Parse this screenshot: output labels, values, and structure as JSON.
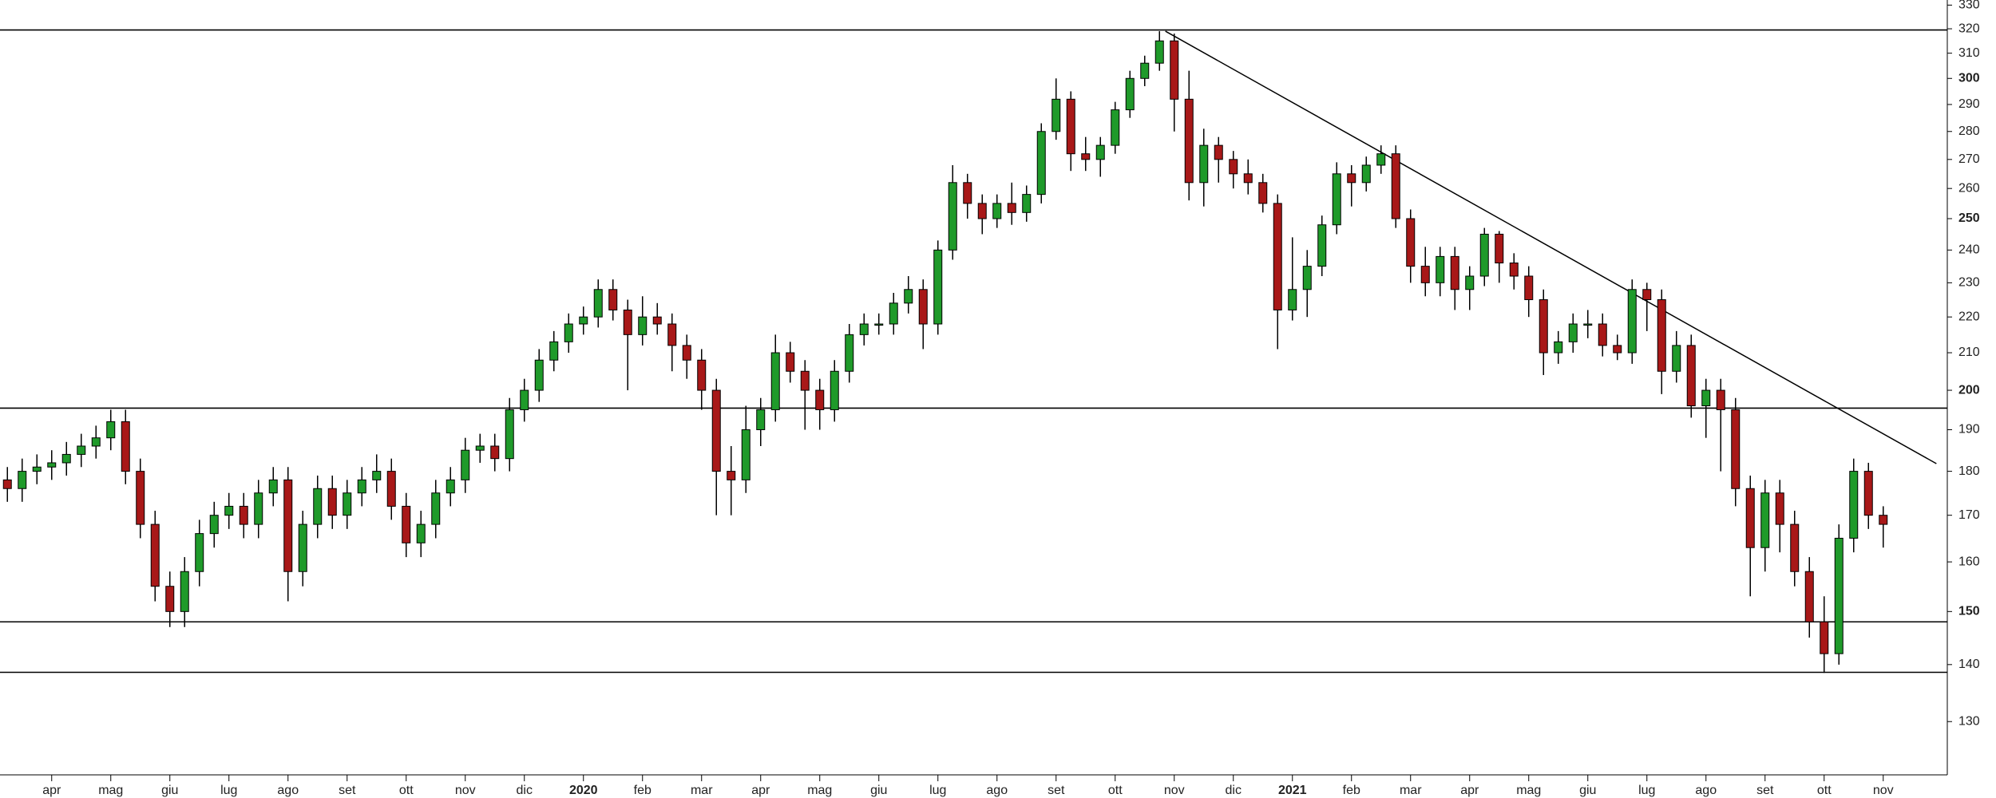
{
  "chart_data": {
    "type": "candlestick",
    "log_scale": true,
    "grid": false,
    "up_color": "#1f9a2a",
    "down_color": "#a81818",
    "categories": [
      null,
      null,
      null,
      "apr",
      null,
      null,
      null,
      "mag",
      null,
      null,
      null,
      "giu",
      null,
      null,
      null,
      "lug",
      null,
      null,
      null,
      "ago",
      null,
      null,
      null,
      "set",
      null,
      null,
      null,
      "ott",
      null,
      null,
      null,
      "nov",
      null,
      null,
      null,
      "dic",
      null,
      null,
      null,
      "2020",
      null,
      null,
      null,
      "feb",
      null,
      null,
      null,
      "mar",
      null,
      null,
      null,
      "apr",
      null,
      null,
      null,
      "mag",
      null,
      null,
      null,
      "giu",
      null,
      null,
      null,
      "lug",
      null,
      null,
      null,
      "ago",
      null,
      null,
      null,
      "set",
      null,
      null,
      null,
      "ott",
      null,
      null,
      null,
      "nov",
      null,
      null,
      null,
      "dic",
      null,
      null,
      null,
      "2021",
      null,
      null,
      null,
      "feb",
      null,
      null,
      null,
      "mar",
      null,
      null,
      null,
      "apr",
      null,
      null,
      null,
      "mag",
      null,
      null,
      null,
      "giu",
      null,
      null,
      null,
      "lug",
      null,
      null,
      null,
      "ago",
      null,
      null,
      null,
      "set",
      null,
      null,
      null,
      "ott",
      null,
      null,
      null,
      "nov"
    ],
    "open": [
      178,
      176,
      180,
      181,
      182,
      184,
      186,
      188,
      192,
      180,
      168,
      155,
      150,
      158,
      166,
      170,
      172,
      168,
      175,
      178,
      158,
      168,
      176,
      170,
      175,
      178,
      180,
      172,
      164,
      168,
      175,
      178,
      185,
      186,
      183,
      195,
      200,
      208,
      213,
      218,
      220,
      228,
      222,
      215,
      220,
      218,
      212,
      208,
      200,
      180,
      178,
      190,
      195,
      210,
      205,
      200,
      195,
      205,
      215,
      218,
      218,
      224,
      228,
      218,
      240,
      262,
      255,
      250,
      255,
      252,
      258,
      280,
      292,
      272,
      270,
      275,
      288,
      300,
      306,
      315,
      292,
      262,
      275,
      270,
      265,
      262,
      255,
      222,
      228,
      235,
      248,
      265,
      262,
      268,
      272,
      250,
      235,
      230,
      238,
      228,
      232,
      245,
      236,
      232,
      225,
      210,
      213,
      218,
      218,
      212,
      210,
      228,
      225,
      205,
      212,
      196,
      200,
      195,
      176,
      163,
      175,
      168,
      158,
      148,
      142,
      165,
      180,
      170
    ],
    "high": [
      181,
      183,
      184,
      185,
      187,
      189,
      191,
      195,
      195,
      183,
      171,
      158,
      161,
      169,
      173,
      175,
      175,
      178,
      181,
      181,
      171,
      179,
      179,
      178,
      181,
      184,
      183,
      175,
      171,
      178,
      181,
      188,
      189,
      189,
      198,
      203,
      211,
      216,
      221,
      223,
      231,
      231,
      225,
      226,
      224,
      221,
      215,
      211,
      203,
      186,
      196,
      198,
      215,
      213,
      208,
      203,
      208,
      218,
      221,
      221,
      227,
      232,
      231,
      243,
      268,
      265,
      258,
      258,
      262,
      261,
      283,
      300,
      295,
      278,
      278,
      291,
      303,
      309,
      319,
      318,
      303,
      281,
      278,
      273,
      270,
      265,
      258,
      244,
      240,
      251,
      269,
      268,
      271,
      275,
      275,
      253,
      241,
      241,
      241,
      235,
      247,
      246,
      239,
      235,
      228,
      216,
      221,
      222,
      221,
      215,
      231,
      230,
      228,
      216,
      215,
      203,
      203,
      198,
      179,
      178,
      178,
      171,
      161,
      153,
      168,
      183,
      182,
      172
    ],
    "low": [
      173,
      173,
      177,
      178,
      179,
      181,
      183,
      185,
      177,
      165,
      152,
      147,
      147,
      155,
      163,
      167,
      165,
      165,
      172,
      152,
      155,
      165,
      167,
      167,
      172,
      175,
      169,
      161,
      161,
      165,
      172,
      175,
      182,
      180,
      180,
      192,
      197,
      205,
      210,
      215,
      217,
      219,
      200,
      212,
      215,
      205,
      203,
      195,
      170,
      170,
      175,
      186,
      192,
      202,
      190,
      190,
      192,
      202,
      212,
      215,
      215,
      221,
      211,
      215,
      237,
      250,
      245,
      247,
      248,
      249,
      255,
      277,
      266,
      266,
      264,
      272,
      285,
      297,
      303,
      280,
      256,
      254,
      262,
      260,
      258,
      252,
      211,
      219,
      220,
      232,
      245,
      254,
      259,
      265,
      247,
      230,
      226,
      226,
      222,
      222,
      229,
      230,
      228,
      220,
      204,
      207,
      210,
      214,
      209,
      208,
      207,
      216,
      199,
      202,
      193,
      188,
      180,
      172,
      153,
      158,
      162,
      155,
      145,
      138.5,
      140,
      162,
      167,
      163
    ],
    "close": [
      176,
      180,
      181,
      182,
      184,
      186,
      188,
      192,
      180,
      168,
      155,
      150,
      158,
      166,
      170,
      172,
      168,
      175,
      178,
      158,
      168,
      176,
      170,
      175,
      178,
      180,
      172,
      164,
      168,
      175,
      178,
      185,
      186,
      183,
      195,
      200,
      208,
      213,
      218,
      220,
      228,
      222,
      215,
      220,
      218,
      212,
      208,
      200,
      180,
      178,
      190,
      195,
      210,
      205,
      200,
      195,
      205,
      215,
      218,
      218,
      224,
      228,
      218,
      240,
      262,
      255,
      250,
      255,
      252,
      258,
      280,
      292,
      272,
      270,
      275,
      288,
      300,
      306,
      315,
      292,
      262,
      275,
      270,
      265,
      262,
      255,
      222,
      228,
      235,
      248,
      265,
      262,
      268,
      272,
      250,
      235,
      230,
      238,
      228,
      232,
      245,
      236,
      232,
      225,
      210,
      213,
      218,
      218,
      212,
      210,
      228,
      225,
      205,
      212,
      196,
      200,
      195,
      176,
      163,
      175,
      168,
      158,
      148,
      142,
      165,
      180,
      170,
      168
    ],
    "ylim": [
      121.3,
      332.2
    ],
    "yticks": [
      130,
      140,
      150,
      160,
      170,
      180,
      190,
      200,
      210,
      220,
      230,
      240,
      250,
      260,
      270,
      280,
      290,
      300,
      310,
      320,
      330
    ],
    "levels": [
      319.5,
      195.4,
      148,
      138.6
    ],
    "trendline": {
      "x": [
        78.4,
        130.6
      ],
      "y": [
        319,
        181.8
      ]
    }
  }
}
